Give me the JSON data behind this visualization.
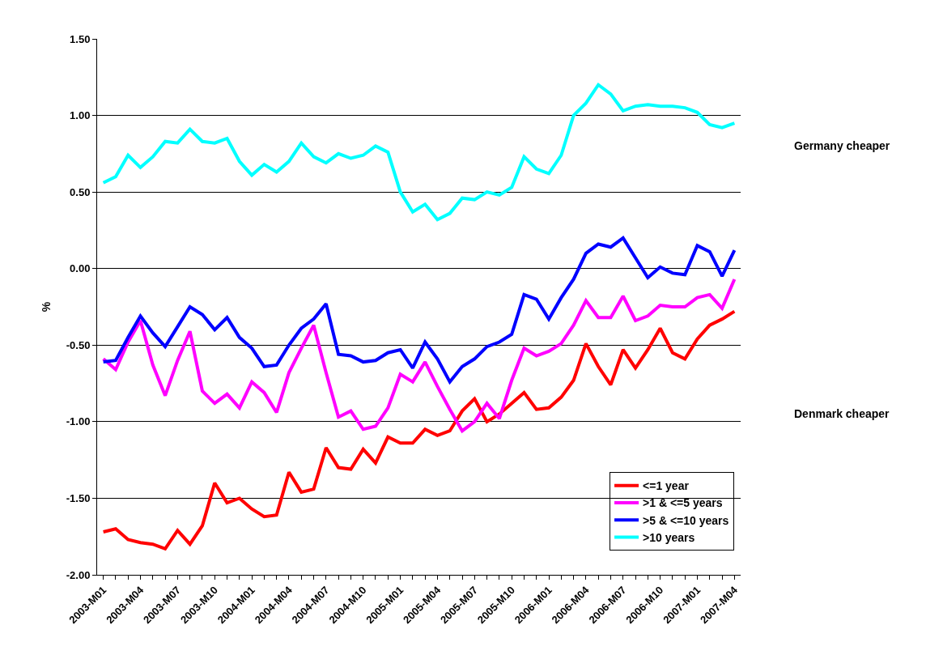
{
  "chart_data": {
    "type": "line",
    "ylabel": "%",
    "categories": [
      "2003-M01",
      null,
      null,
      "2003-M04",
      null,
      null,
      "2003-M07",
      null,
      null,
      "2003-M10",
      null,
      null,
      "2004-M01",
      null,
      null,
      "2004-M04",
      null,
      null,
      "2004-M07",
      null,
      null,
      "2004-M10",
      null,
      null,
      "2005-M01",
      null,
      null,
      "2005-M04",
      null,
      null,
      "2005-M07",
      null,
      null,
      "2005-M10",
      null,
      null,
      "2006-M01",
      null,
      null,
      "2006-M04",
      null,
      null,
      "2006-M07",
      null,
      null,
      "2006-M10",
      null,
      null,
      "2007-M01",
      null,
      null,
      "2007-M04"
    ],
    "series": [
      {
        "name": "<=1 year",
        "color": "#ff0000",
        "values": [
          -1.72,
          -1.7,
          -1.77,
          -1.79,
          -1.8,
          -1.83,
          -1.71,
          -1.8,
          -1.68,
          -1.4,
          -1.53,
          -1.5,
          -1.57,
          -1.62,
          -1.61,
          -1.33,
          -1.46,
          -1.44,
          -1.17,
          -1.3,
          -1.31,
          -1.18,
          -1.27,
          -1.1,
          -1.14,
          -1.14,
          -1.05,
          -1.09,
          -1.06,
          -0.93,
          -0.85,
          -1.0,
          -0.95,
          -0.88,
          -0.81,
          -0.92,
          -0.91,
          -0.84,
          -0.73,
          -0.49,
          -0.64,
          -0.76,
          -0.53,
          -0.65,
          -0.53,
          -0.39,
          -0.55,
          -0.59,
          -0.46,
          -0.37,
          -0.33,
          -0.28
        ]
      },
      {
        "name": ">1 & <=5 years",
        "color": "#ff00ff",
        "values": [
          -0.59,
          -0.66,
          -0.48,
          -0.34,
          -0.63,
          -0.83,
          -0.6,
          -0.41,
          -0.8,
          -0.88,
          -0.82,
          -0.91,
          -0.74,
          -0.81,
          -0.94,
          -0.68,
          -0.52,
          -0.37,
          -0.68,
          -0.97,
          -0.93,
          -1.05,
          -1.03,
          -0.91,
          -0.69,
          -0.74,
          -0.61,
          -0.77,
          -0.92,
          -1.06,
          -1.0,
          -0.88,
          -0.98,
          -0.73,
          -0.52,
          -0.57,
          -0.54,
          -0.49,
          -0.37,
          -0.21,
          -0.32,
          -0.32,
          -0.18,
          -0.34,
          -0.31,
          -0.24,
          -0.25,
          -0.25,
          -0.19,
          -0.17,
          -0.26,
          -0.07
        ]
      },
      {
        "name": ">5 & <=10 years",
        "color": "#0000ff",
        "values": [
          -0.61,
          -0.6,
          -0.45,
          -0.31,
          -0.42,
          -0.51,
          -0.38,
          -0.25,
          -0.3,
          -0.4,
          -0.32,
          -0.45,
          -0.52,
          -0.64,
          -0.63,
          -0.5,
          -0.39,
          -0.33,
          -0.23,
          -0.56,
          -0.57,
          -0.61,
          -0.6,
          -0.55,
          -0.53,
          -0.65,
          -0.48,
          -0.59,
          -0.74,
          -0.64,
          -0.59,
          -0.51,
          -0.48,
          -0.43,
          -0.17,
          -0.2,
          -0.33,
          -0.19,
          -0.07,
          0.1,
          0.16,
          0.14,
          0.2,
          0.07,
          -0.06,
          0.01,
          -0.03,
          -0.04,
          0.15,
          0.11,
          -0.05,
          0.12
        ]
      },
      {
        "name": ">10 years",
        "color": "#00ffff",
        "values": [
          0.56,
          0.6,
          0.74,
          0.66,
          0.73,
          0.83,
          0.82,
          0.91,
          0.83,
          0.82,
          0.85,
          0.7,
          0.61,
          0.68,
          0.63,
          0.7,
          0.82,
          0.73,
          0.69,
          0.75,
          0.72,
          0.74,
          0.8,
          0.76,
          0.5,
          0.37,
          0.42,
          0.32,
          0.36,
          0.46,
          0.45,
          0.5,
          0.48,
          0.53,
          0.73,
          0.65,
          0.62,
          0.74,
          1.0,
          1.08,
          1.2,
          1.14,
          1.03,
          1.06,
          1.07,
          1.06,
          1.06,
          1.05,
          1.02,
          0.94,
          0.92,
          0.95
        ]
      }
    ],
    "ylim": [
      -2.0,
      1.5
    ],
    "yticks": [
      {
        "value": -2.0,
        "label": "-2.00"
      },
      {
        "value": -1.5,
        "label": "-1.50"
      },
      {
        "value": -1.0,
        "label": "-1.00"
      },
      {
        "value": -0.5,
        "label": "-0.50"
      },
      {
        "value": 0,
        "label": "0.00"
      },
      {
        "value": 0.5,
        "label": "0.50"
      },
      {
        "value": 1.0,
        "label": "1.00"
      },
      {
        "value": 1.5,
        "label": "1.50"
      }
    ],
    "grid": "y",
    "legend": "bottom right",
    "marker": "none",
    "line_style": "solid",
    "annotations": [
      "Germany cheaper",
      "Denmark cheaper"
    ]
  }
}
